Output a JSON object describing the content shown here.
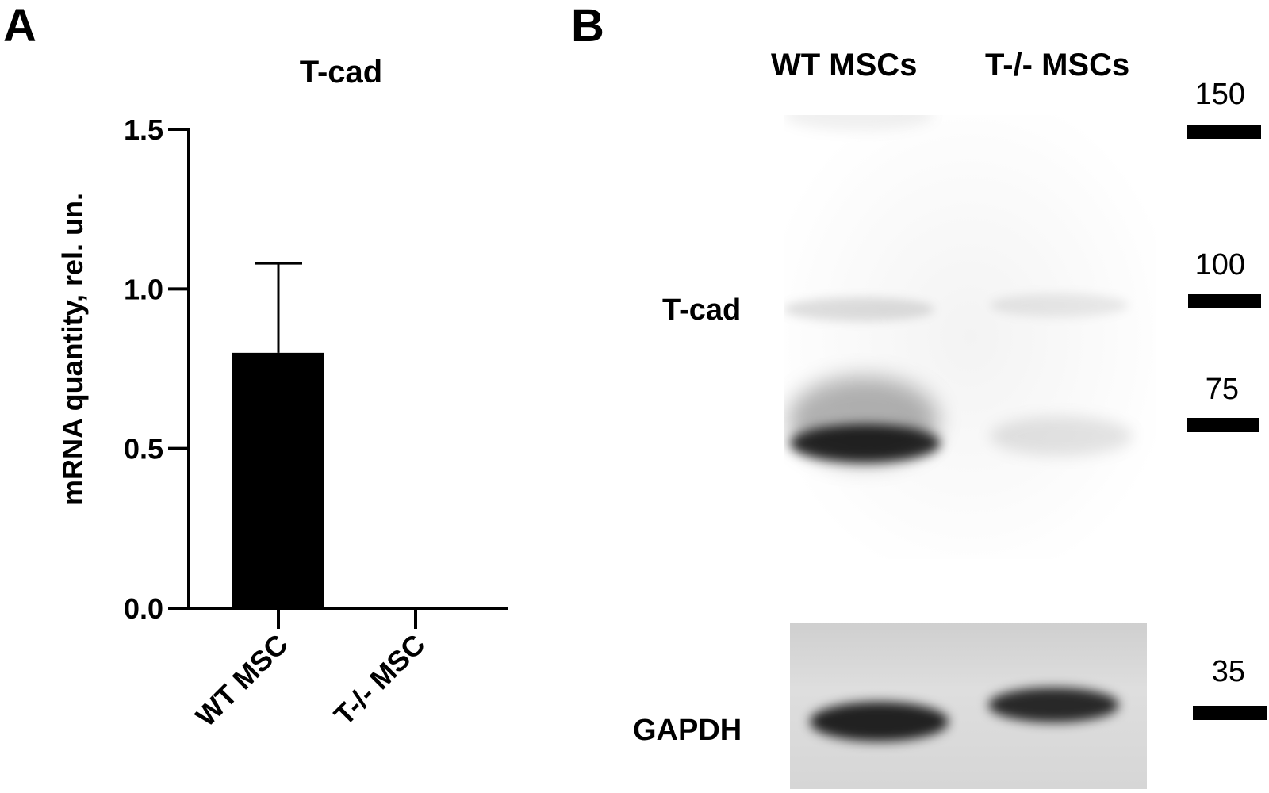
{
  "panels": {
    "a": {
      "letter": "A"
    },
    "b": {
      "letter": "B"
    }
  },
  "chart_data": {
    "type": "bar",
    "title": "T-cad",
    "ylabel": "mRNA quantity, rel. un.",
    "xlabel": "",
    "categories": [
      "WT MSC",
      "T-/- MSC"
    ],
    "values": [
      0.8,
      0.0
    ],
    "error_upper": [
      1.08,
      0.0
    ],
    "ylim": [
      0,
      1.5
    ],
    "yticks": [
      "0.0",
      "0.5",
      "1.0",
      "1.5"
    ],
    "ytick_values": [
      0.0,
      0.5,
      1.0,
      1.5
    ],
    "bar_color": "#000000",
    "grid": false
  },
  "blot": {
    "lanes": [
      "WT MSCs",
      "T-/- MSCs"
    ],
    "proteins": {
      "tcad": "T-cad",
      "gapdh": "GAPDH"
    },
    "markers": [
      {
        "label": "150"
      },
      {
        "label": "100"
      },
      {
        "label": "75"
      },
      {
        "label": "35"
      }
    ]
  }
}
